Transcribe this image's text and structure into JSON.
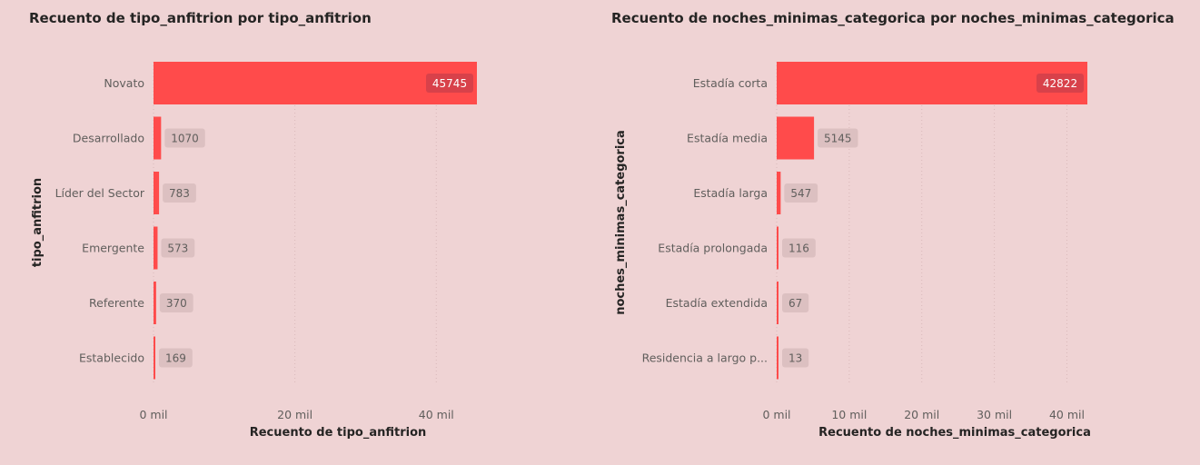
{
  "chart_data": [
    {
      "type": "bar",
      "orientation": "horizontal",
      "title": "Recuento de tipo_anfitrion por tipo_anfitrion",
      "xlabel": "Recuento de tipo_anfitrion",
      "ylabel": "tipo_anfitrion",
      "categories": [
        "Novato",
        "Desarrollado",
        "Líder del Sector",
        "Emergente",
        "Referente",
        "Establecido"
      ],
      "values": [
        45745,
        1070,
        783,
        573,
        370,
        169
      ],
      "data_labels": [
        "45745",
        "1070",
        "783",
        "573",
        "370",
        "169"
      ],
      "xticks": [
        0,
        20000,
        40000
      ],
      "xtick_labels": [
        "0 mil",
        "20 mil",
        "40 mil"
      ],
      "xlim": [
        0,
        45745
      ],
      "grid": true,
      "bar_color": "#ff4b4b"
    },
    {
      "type": "bar",
      "orientation": "horizontal",
      "title": "Recuento de noches_minimas_categorica por noches_minimas_categorica",
      "xlabel": "Recuento de noches_minimas_categorica",
      "ylabel": "noches_minimas_categorica",
      "categories": [
        "Estadía corta",
        "Estadía media",
        "Estadía larga",
        "Estadía prolongada",
        "Estadía extendida",
        "Residencia a largo p..."
      ],
      "values": [
        42822,
        5145,
        547,
        116,
        67,
        13
      ],
      "data_labels": [
        "42822",
        "5145",
        "547",
        "116",
        "67",
        "13"
      ],
      "xticks": [
        0,
        10000,
        20000,
        30000,
        40000
      ],
      "xtick_labels": [
        "0 mil",
        "10 mil",
        "20 mil",
        "30 mil",
        "40 mil"
      ],
      "xlim": [
        0,
        42822
      ],
      "grid": true,
      "bar_color": "#ff4b4b"
    }
  ]
}
